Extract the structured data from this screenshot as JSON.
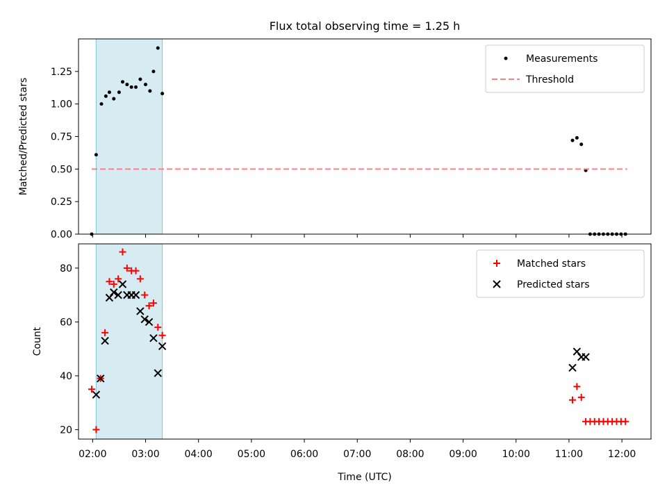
{
  "chart_data": {
    "title": "Flux total observing time = 1.25 h",
    "xlabel": "Time (UTC)",
    "x_ticks": [
      "02:00",
      "03:00",
      "04:00",
      "05:00",
      "06:00",
      "07:00",
      "08:00",
      "09:00",
      "10:00",
      "11:00",
      "12:00"
    ],
    "x_range": [
      "01:44",
      "12:33"
    ],
    "shaded_span": [
      "02:04",
      "03:19"
    ],
    "panels": [
      {
        "type": "scatter",
        "ylabel": "Matched/Predicted stars",
        "ylim": [
          0,
          1.5
        ],
        "y_ticks": [
          "0.00",
          "0.25",
          "0.50",
          "0.75",
          "1.00",
          "1.25"
        ],
        "legend_position": "upper right",
        "series": [
          {
            "name": "Measurements",
            "marker": "dot",
            "color": "#000000",
            "points": [
              [
                "01:59",
                0.0
              ],
              [
                "02:04",
                0.61
              ],
              [
                "02:10",
                1.0
              ],
              [
                "02:15",
                1.06
              ],
              [
                "02:19",
                1.09
              ],
              [
                "02:24",
                1.04
              ],
              [
                "02:30",
                1.09
              ],
              [
                "02:34",
                1.17
              ],
              [
                "02:39",
                1.15
              ],
              [
                "02:44",
                1.13
              ],
              [
                "02:49",
                1.13
              ],
              [
                "02:54",
                1.19
              ],
              [
                "03:00",
                1.15
              ],
              [
                "03:05",
                1.1
              ],
              [
                "03:09",
                1.25
              ],
              [
                "03:14",
                1.43
              ],
              [
                "03:19",
                1.08
              ],
              [
                "11:04",
                0.72
              ],
              [
                "11:09",
                0.74
              ],
              [
                "11:14",
                0.69
              ],
              [
                "11:19",
                0.49
              ],
              [
                "11:24",
                0.0
              ],
              [
                "11:29",
                0.0
              ],
              [
                "11:34",
                0.0
              ],
              [
                "11:39",
                0.0
              ],
              [
                "11:44",
                0.0
              ],
              [
                "11:49",
                0.0
              ],
              [
                "11:54",
                0.0
              ],
              [
                "11:59",
                0.0
              ],
              [
                "12:04",
                0.0
              ]
            ]
          },
          {
            "name": "Threshold",
            "marker": "dashed-line",
            "color": "#ff7f7f",
            "points": [
              [
                "01:59",
                0.5
              ],
              [
                "12:06",
                0.5
              ]
            ]
          }
        ]
      },
      {
        "type": "scatter",
        "ylabel": "Count",
        "ylim": [
          16.5,
          89
        ],
        "y_ticks": [
          "20",
          "40",
          "60",
          "80"
        ],
        "legend_position": "upper right",
        "series": [
          {
            "name": "Matched stars",
            "marker": "plus",
            "color": "#ff0000",
            "points": [
              [
                "01:59",
                35
              ],
              [
                "02:04",
                20
              ],
              [
                "02:09",
                39
              ],
              [
                "02:14",
                56
              ],
              [
                "02:19",
                75
              ],
              [
                "02:24",
                74
              ],
              [
                "02:29",
                76
              ],
              [
                "02:34",
                86
              ],
              [
                "02:39",
                80
              ],
              [
                "02:44",
                79
              ],
              [
                "02:49",
                79
              ],
              [
                "02:54",
                76
              ],
              [
                "02:59",
                70
              ],
              [
                "03:04",
                66
              ],
              [
                "03:09",
                67
              ],
              [
                "03:14",
                58
              ],
              [
                "03:19",
                55
              ],
              [
                "11:04",
                31
              ],
              [
                "11:09",
                36
              ],
              [
                "11:14",
                32
              ],
              [
                "11:19",
                23
              ],
              [
                "11:24",
                23
              ],
              [
                "11:29",
                23
              ],
              [
                "11:34",
                23
              ],
              [
                "11:39",
                23
              ],
              [
                "11:44",
                23
              ],
              [
                "11:49",
                23
              ],
              [
                "11:54",
                23
              ],
              [
                "11:59",
                23
              ],
              [
                "12:04",
                23
              ]
            ]
          },
          {
            "name": "Predicted stars",
            "marker": "x",
            "color": "#000000",
            "points": [
              [
                "02:04",
                33
              ],
              [
                "02:09",
                39
              ],
              [
                "02:14",
                53
              ],
              [
                "02:19",
                69
              ],
              [
                "02:24",
                71
              ],
              [
                "02:29",
                70
              ],
              [
                "02:34",
                74
              ],
              [
                "02:39",
                70
              ],
              [
                "02:44",
                70
              ],
              [
                "02:49",
                70
              ],
              [
                "02:54",
                64
              ],
              [
                "02:59",
                61
              ],
              [
                "03:04",
                60
              ],
              [
                "03:09",
                54
              ],
              [
                "03:14",
                41
              ],
              [
                "03:19",
                51
              ],
              [
                "11:04",
                43
              ],
              [
                "11:09",
                49
              ],
              [
                "11:14",
                47
              ],
              [
                "11:19",
                47
              ]
            ]
          }
        ]
      }
    ]
  }
}
